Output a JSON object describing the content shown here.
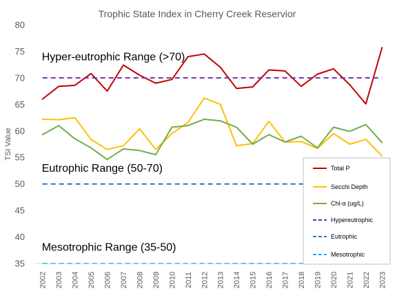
{
  "chart_data": {
    "type": "line",
    "title": "Trophic State Index in Cherry Creek Reservior",
    "xlabel": "",
    "ylabel": "TSI Value",
    "ylim": [
      35,
      80
    ],
    "yticks": [
      35,
      40,
      45,
      50,
      55,
      60,
      65,
      70,
      75,
      80
    ],
    "grid": false,
    "legend_position": "bottom-right",
    "categories": [
      "2002",
      "2003",
      "2004",
      "2005",
      "2006",
      "2007",
      "2008",
      "2009",
      "2010",
      "2011",
      "2012",
      "2013",
      "2014",
      "2015",
      "2016",
      "2017",
      "2018",
      "2019",
      "2020",
      "2021",
      "2022",
      "2023"
    ],
    "series": [
      {
        "name": "Total P",
        "color": "#c00000",
        "style": "solid",
        "values": [
          66.0,
          68.4,
          68.6,
          70.8,
          67.5,
          72.4,
          70.5,
          69.0,
          69.7,
          74.0,
          74.5,
          72.0,
          68.0,
          68.3,
          71.5,
          71.3,
          68.4,
          70.7,
          71.7,
          68.7,
          65.1,
          75.7
        ]
      },
      {
        "name": "Secchi Depth",
        "color": "#ffc000",
        "style": "solid",
        "values": [
          62.2,
          62.1,
          62.5,
          58.4,
          56.5,
          57.2,
          60.4,
          56.5,
          59.5,
          61.6,
          66.2,
          65.0,
          57.2,
          57.6,
          61.8,
          57.9,
          58.0,
          56.7,
          59.5,
          57.5,
          58.4,
          55.3
        ]
      },
      {
        "name": "Chl-α (ug/L)",
        "color": "#70ad47",
        "style": "solid",
        "values": [
          59.3,
          61.0,
          58.5,
          56.8,
          54.6,
          56.6,
          56.3,
          55.5,
          60.7,
          61.0,
          62.2,
          61.9,
          60.7,
          57.5,
          59.3,
          57.9,
          59.0,
          56.8,
          60.7,
          59.9,
          61.2,
          57.8
        ]
      },
      {
        "name": "Hypereutrophic",
        "color": "#7030a0",
        "style": "dashed",
        "values": [
          70,
          70,
          70,
          70,
          70,
          70,
          70,
          70,
          70,
          70,
          70,
          70,
          70,
          70,
          70,
          70,
          70,
          70,
          70,
          70,
          70,
          70
        ]
      },
      {
        "name": "Eutrophic",
        "color": "#2e75b6",
        "style": "dashed",
        "values": [
          50,
          50,
          50,
          50,
          50,
          50,
          50,
          50,
          50,
          50,
          50,
          50,
          50,
          50,
          50,
          50,
          50,
          50,
          50,
          50,
          50,
          50
        ]
      },
      {
        "name": "Mesotrophic",
        "color": "#00b0f0",
        "style": "dashed",
        "values": [
          35,
          35,
          35,
          35,
          35,
          35,
          35,
          35,
          35,
          35,
          35,
          35,
          35,
          35,
          35,
          35,
          35,
          35,
          35,
          35,
          35,
          35
        ]
      }
    ],
    "annotations": [
      {
        "text": "Hyper-eutrophic Range (>70)",
        "y": 73.3,
        "x": "2002"
      },
      {
        "text": "Eutrophic Range (50-70)",
        "y": 52.3,
        "x": "2002"
      },
      {
        "text": "Mesotrophic Range (35-50)",
        "y": 37.4,
        "x": "2002"
      }
    ]
  }
}
